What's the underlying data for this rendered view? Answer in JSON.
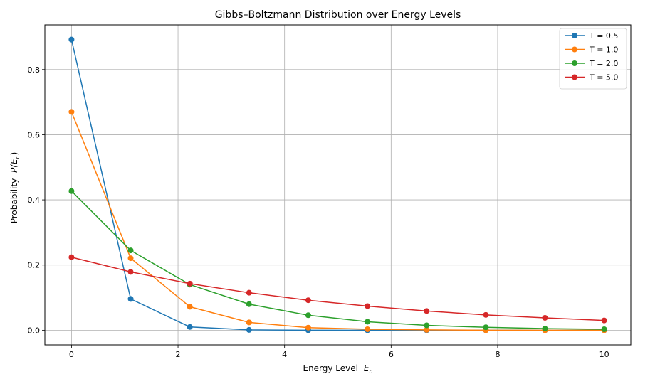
{
  "chart_data": {
    "type": "line",
    "title": "Gibbs–Boltzmann Distribution over Energy Levels",
    "xlabel": "Energy Level",
    "xlabel_sub": "n",
    "ylabel": "Probability",
    "ylabel_math": "P(E",
    "ylabel_sub": "n",
    "ylabel_close": ")",
    "xlim": [
      -0.5,
      10.5
    ],
    "ylim": [
      -0.045,
      0.937
    ],
    "xticks": [
      0,
      2,
      4,
      6,
      8,
      10
    ],
    "xtick_labels": [
      "0",
      "2",
      "4",
      "6",
      "8",
      "10"
    ],
    "yticks": [
      0.0,
      0.2,
      0.4,
      0.6,
      0.8
    ],
    "ytick_labels": [
      "0.0",
      "0.2",
      "0.4",
      "0.6",
      "0.8"
    ],
    "grid": true,
    "legend_position": "top-right",
    "x": [
      0,
      1.111,
      2.222,
      3.333,
      4.444,
      5.556,
      6.667,
      7.778,
      8.889,
      10.0
    ],
    "series": [
      {
        "name": "T = 0.5",
        "color": "#1f77b4",
        "values": [
          0.892,
          0.096,
          0.01,
          0.001,
          0.0,
          0.0,
          0.0,
          0.0,
          0.0,
          0.0
        ]
      },
      {
        "name": "T = 1.0",
        "color": "#ff7f0e",
        "values": [
          0.67,
          0.221,
          0.072,
          0.024,
          0.008,
          0.003,
          0.001,
          0.0,
          0.0,
          0.0
        ]
      },
      {
        "name": "T = 2.0",
        "color": "#2ca02c",
        "values": [
          0.427,
          0.245,
          0.14,
          0.08,
          0.046,
          0.026,
          0.015,
          0.009,
          0.005,
          0.003
        ]
      },
      {
        "name": "T = 5.0",
        "color": "#d62728",
        "values": [
          0.224,
          0.179,
          0.143,
          0.115,
          0.092,
          0.074,
          0.059,
          0.047,
          0.038,
          0.03
        ]
      }
    ]
  }
}
